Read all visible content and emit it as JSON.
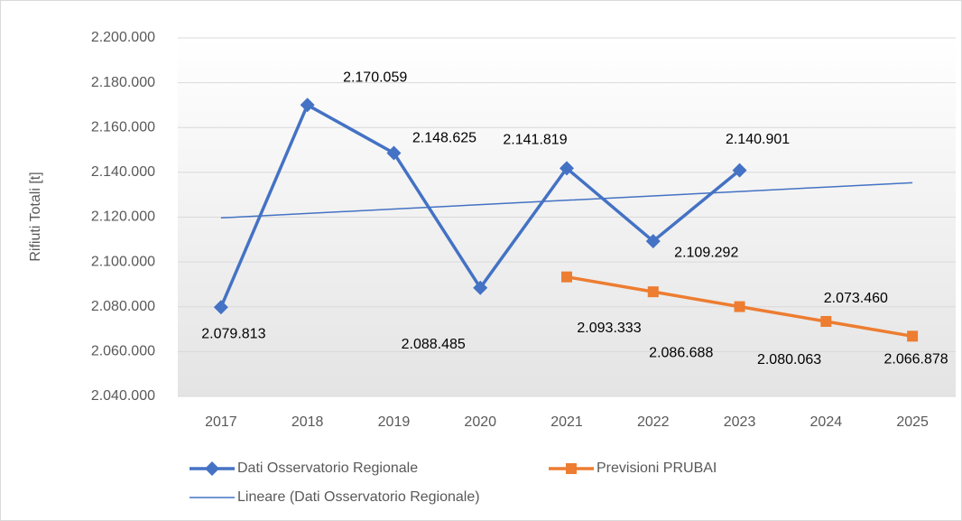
{
  "chart_data": {
    "type": "line",
    "y_label": "Rifiuti Totali [t]",
    "categories": [
      "2017",
      "2018",
      "2019",
      "2020",
      "2021",
      "2022",
      "2023",
      "2024",
      "2025"
    ],
    "series": [
      {
        "name": "Dati Osservatorio Regionale",
        "color": "#4472c4",
        "marker": "diamond",
        "values": [
          2079813,
          2170059,
          2148625,
          2088485,
          2141819,
          2109292,
          2140901,
          null,
          null
        ],
        "value_labels": [
          "2.079.813",
          "2.170.059",
          "2.148.625",
          "2.088.485",
          "2.141.819",
          "2.109.292",
          "2.140.901",
          null,
          null
        ]
      },
      {
        "name": "Previsioni PRUBAI",
        "color": "#ed7d31",
        "marker": "square",
        "values": [
          null,
          null,
          null,
          null,
          2093333,
          2086688,
          2080063,
          2073460,
          2066878
        ],
        "value_labels": [
          null,
          null,
          null,
          null,
          "2.093.333",
          "2.086.688",
          "2.080.063",
          "2.073.460",
          "2.066.878"
        ]
      },
      {
        "name": "Lineare (Dati Osservatorio Regionale)",
        "color": "#4472c4",
        "marker": "none",
        "values": [
          2119686,
          2121648,
          2123609,
          2125571,
          2127532,
          2129494,
          2131456,
          2133417,
          2135379
        ]
      }
    ],
    "ylim": [
      2040000,
      2200000
    ],
    "yticks": [
      {
        "value": 2040000,
        "label": "2.040.000"
      },
      {
        "value": 2060000,
        "label": "2.060.000"
      },
      {
        "value": 2080000,
        "label": "2.080.000"
      },
      {
        "value": 2100000,
        "label": "2.100.000"
      },
      {
        "value": 2120000,
        "label": "2.120.000"
      },
      {
        "value": 2140000,
        "label": "2.140.000"
      },
      {
        "value": 2160000,
        "label": "2.160.000"
      },
      {
        "value": 2180000,
        "label": "2.180.000"
      },
      {
        "value": 2200000,
        "label": "2.200.000"
      }
    ],
    "grid": true,
    "legend": "bottom"
  }
}
